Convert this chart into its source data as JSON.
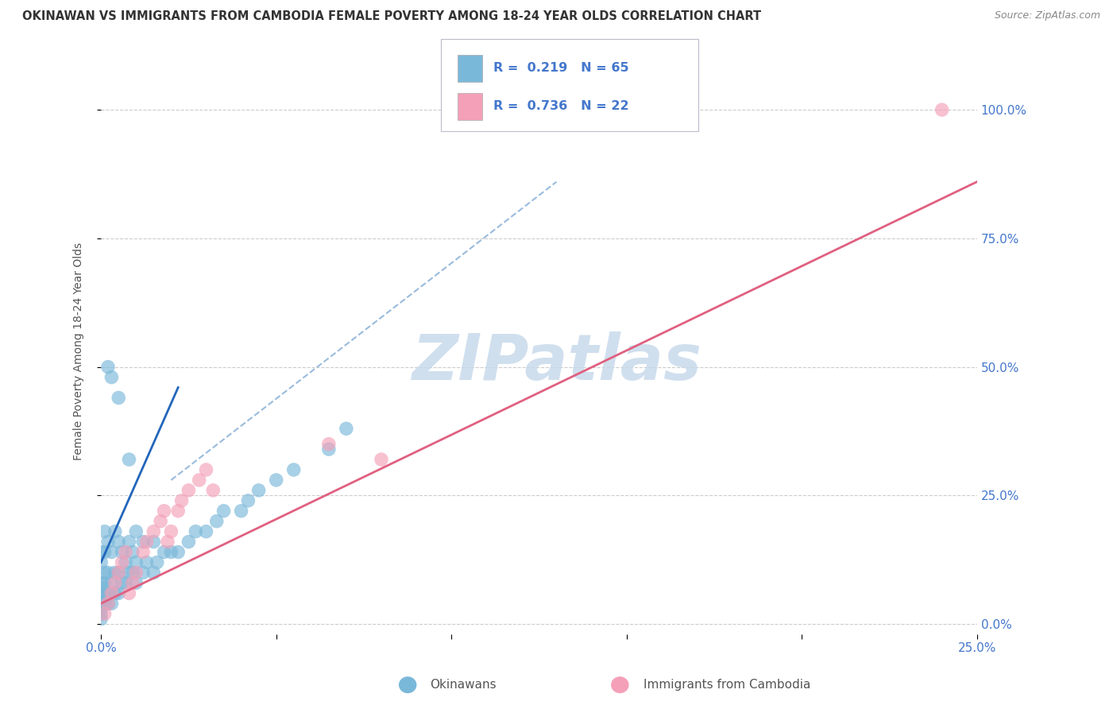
{
  "title": "OKINAWAN VS IMMIGRANTS FROM CAMBODIA FEMALE POVERTY AMONG 18-24 YEAR OLDS CORRELATION CHART",
  "source": "Source: ZipAtlas.com",
  "ylabel": "Female Poverty Among 18-24 Year Olds",
  "xlim": [
    0.0,
    0.25
  ],
  "ylim": [
    -0.02,
    1.08
  ],
  "okinawan_color": "#7ab8d9",
  "cambodia_color": "#f4a0b8",
  "okinawan_line_color": "#2266bb",
  "cambodia_line_color": "#e06080",
  "trend_dash_color": "#99bbdd",
  "watermark_color": "#c5d8ea",
  "background_color": "#ffffff",
  "grid_color": "#cccccc",
  "title_color": "#333333",
  "axis_label_color": "#555555",
  "tick_color": "#4477cc",
  "legend_box_color": "#e8e8ee",
  "okinawan_x": [
    0.0,
    0.0,
    0.0,
    0.0,
    0.0,
    0.0,
    0.0,
    0.0,
    0.0,
    0.0,
    0.001,
    0.001,
    0.001,
    0.001,
    0.001,
    0.001,
    0.002,
    0.002,
    0.002,
    0.002,
    0.003,
    0.003,
    0.003,
    0.004,
    0.004,
    0.004,
    0.005,
    0.005,
    0.005,
    0.006,
    0.006,
    0.007,
    0.007,
    0.008,
    0.008,
    0.009,
    0.009,
    0.01,
    0.01,
    0.01,
    0.012,
    0.012,
    0.013,
    0.015,
    0.015,
    0.016,
    0.018,
    0.02,
    0.022,
    0.025,
    0.027,
    0.03,
    0.033,
    0.035,
    0.04,
    0.042,
    0.045,
    0.05,
    0.055,
    0.065,
    0.07,
    0.008,
    0.005,
    0.003,
    0.002
  ],
  "okinawan_y": [
    0.01,
    0.02,
    0.03,
    0.04,
    0.05,
    0.06,
    0.07,
    0.08,
    0.12,
    0.14,
    0.04,
    0.06,
    0.08,
    0.1,
    0.14,
    0.18,
    0.04,
    0.06,
    0.1,
    0.16,
    0.04,
    0.08,
    0.14,
    0.06,
    0.1,
    0.18,
    0.06,
    0.1,
    0.16,
    0.08,
    0.14,
    0.08,
    0.12,
    0.1,
    0.16,
    0.1,
    0.14,
    0.08,
    0.12,
    0.18,
    0.1,
    0.16,
    0.12,
    0.1,
    0.16,
    0.12,
    0.14,
    0.14,
    0.14,
    0.16,
    0.18,
    0.18,
    0.2,
    0.22,
    0.22,
    0.24,
    0.26,
    0.28,
    0.3,
    0.34,
    0.38,
    0.32,
    0.44,
    0.48,
    0.5
  ],
  "cambodia_x": [
    0.001,
    0.002,
    0.003,
    0.004,
    0.005,
    0.006,
    0.007,
    0.008,
    0.009,
    0.01,
    0.012,
    0.013,
    0.015,
    0.017,
    0.018,
    0.019,
    0.02,
    0.022,
    0.023,
    0.025,
    0.028,
    0.03,
    0.032,
    0.065,
    0.08,
    0.24
  ],
  "cambodia_y": [
    0.02,
    0.04,
    0.06,
    0.08,
    0.1,
    0.12,
    0.14,
    0.06,
    0.08,
    0.1,
    0.14,
    0.16,
    0.18,
    0.2,
    0.22,
    0.16,
    0.18,
    0.22,
    0.24,
    0.26,
    0.28,
    0.3,
    0.26,
    0.35,
    0.32,
    1.0
  ],
  "ok_trend_x": [
    0.0,
    0.022
  ],
  "ok_trend_y": [
    0.12,
    0.46
  ],
  "cam_trend_x": [
    0.0,
    0.25
  ],
  "cam_trend_y": [
    0.04,
    0.86
  ],
  "dash_trend_x": [
    0.02,
    0.13
  ],
  "dash_trend_y": [
    0.28,
    0.86
  ]
}
